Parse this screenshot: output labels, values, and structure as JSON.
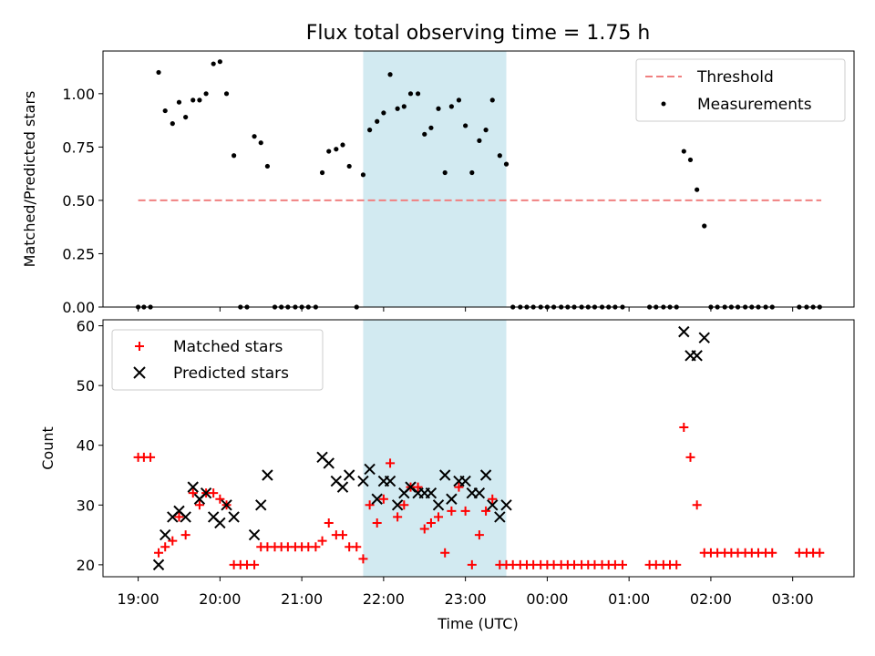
{
  "figure": {
    "title": "Flux total observing time = 1.75 h",
    "xlabel": "Time (UTC)",
    "top_ylabel": "Matched/Predicted stars",
    "bottom_ylabel": "Count"
  },
  "legends": {
    "threshold": "Threshold",
    "measurements": "Measurements",
    "matched": "Matched stars",
    "predicted": "Predicted stars"
  },
  "colors": {
    "threshold": "#f08080",
    "span": "#add8e6",
    "matched": "#ff0000",
    "predicted": "#000000",
    "measurements": "#000000"
  },
  "chart_data": [
    {
      "type": "scatter",
      "title": "Flux total observing time = 1.75 h",
      "xlabel": "",
      "ylabel": "Matched/Predicted stars",
      "xlim": [
        18.57,
        27.75
      ],
      "ylim": [
        0,
        1.2
      ],
      "x_ticks": [
        19,
        20,
        21,
        22,
        23,
        24,
        25,
        26,
        27
      ],
      "y_ticks": [
        0.0,
        0.25,
        0.5,
        0.75,
        1.0
      ],
      "y_tick_labels": [
        "0.00",
        "0.25",
        "0.50",
        "0.75",
        "1.00"
      ],
      "legend_position": "top-right",
      "shaded_span": [
        21.75,
        23.5
      ],
      "threshold": {
        "name": "Threshold",
        "y": 0.5,
        "x_range": [
          19.0,
          27.35
        ]
      },
      "series": [
        {
          "name": "Measurements",
          "points": [
            [
              19.0,
              0.0
            ],
            [
              19.07,
              0.0
            ],
            [
              19.15,
              0.0
            ],
            [
              19.25,
              1.1
            ],
            [
              19.33,
              0.92
            ],
            [
              19.42,
              0.86
            ],
            [
              19.5,
              0.96
            ],
            [
              19.58,
              0.89
            ],
            [
              19.67,
              0.97
            ],
            [
              19.75,
              0.97
            ],
            [
              19.83,
              1.0
            ],
            [
              19.92,
              1.14
            ],
            [
              20.0,
              1.15
            ],
            [
              20.08,
              1.0
            ],
            [
              20.17,
              0.71
            ],
            [
              20.25,
              0.0
            ],
            [
              20.33,
              0.0
            ],
            [
              20.42,
              0.8
            ],
            [
              20.5,
              0.77
            ],
            [
              20.58,
              0.66
            ],
            [
              20.67,
              0.0
            ],
            [
              20.75,
              0.0
            ],
            [
              20.83,
              0.0
            ],
            [
              20.92,
              0.0
            ],
            [
              21.0,
              0.0
            ],
            [
              21.08,
              0.0
            ],
            [
              21.17,
              0.0
            ],
            [
              21.25,
              0.63
            ],
            [
              21.33,
              0.73
            ],
            [
              21.42,
              0.74
            ],
            [
              21.5,
              0.76
            ],
            [
              21.58,
              0.66
            ],
            [
              21.67,
              0.0
            ],
            [
              21.75,
              0.62
            ],
            [
              21.83,
              0.83
            ],
            [
              21.92,
              0.87
            ],
            [
              22.0,
              0.91
            ],
            [
              22.08,
              1.09
            ],
            [
              22.17,
              0.93
            ],
            [
              22.25,
              0.94
            ],
            [
              22.33,
              1.0
            ],
            [
              22.42,
              1.0
            ],
            [
              22.5,
              0.81
            ],
            [
              22.58,
              0.84
            ],
            [
              22.67,
              0.93
            ],
            [
              22.75,
              0.63
            ],
            [
              22.83,
              0.94
            ],
            [
              22.92,
              0.97
            ],
            [
              23.0,
              0.85
            ],
            [
              23.08,
              0.63
            ],
            [
              23.17,
              0.78
            ],
            [
              23.25,
              0.83
            ],
            [
              23.33,
              0.97
            ],
            [
              23.42,
              0.71
            ],
            [
              23.5,
              0.67
            ],
            [
              23.58,
              0.0
            ],
            [
              23.67,
              0.0
            ],
            [
              23.75,
              0.0
            ],
            [
              23.83,
              0.0
            ],
            [
              23.92,
              0.0
            ],
            [
              24.0,
              0.0
            ],
            [
              24.08,
              0.0
            ],
            [
              24.17,
              0.0
            ],
            [
              24.25,
              0.0
            ],
            [
              24.33,
              0.0
            ],
            [
              24.42,
              0.0
            ],
            [
              24.5,
              0.0
            ],
            [
              24.58,
              0.0
            ],
            [
              24.67,
              0.0
            ],
            [
              24.75,
              0.0
            ],
            [
              24.83,
              0.0
            ],
            [
              24.92,
              0.0
            ],
            [
              25.25,
              0.0
            ],
            [
              25.33,
              0.0
            ],
            [
              25.42,
              0.0
            ],
            [
              25.5,
              0.0
            ],
            [
              25.58,
              0.0
            ],
            [
              25.67,
              0.73
            ],
            [
              25.75,
              0.69
            ],
            [
              25.83,
              0.55
            ],
            [
              25.92,
              0.38
            ],
            [
              26.0,
              0.0
            ],
            [
              26.08,
              0.0
            ],
            [
              26.17,
              0.0
            ],
            [
              26.25,
              0.0
            ],
            [
              26.33,
              0.0
            ],
            [
              26.42,
              0.0
            ],
            [
              26.5,
              0.0
            ],
            [
              26.58,
              0.0
            ],
            [
              26.67,
              0.0
            ],
            [
              26.75,
              0.0
            ],
            [
              27.08,
              0.0
            ],
            [
              27.17,
              0.0
            ],
            [
              27.25,
              0.0
            ],
            [
              27.33,
              0.0
            ]
          ]
        }
      ]
    },
    {
      "type": "scatter",
      "title": "",
      "xlabel": "Time (UTC)",
      "ylabel": "Count",
      "xlim": [
        18.57,
        27.75
      ],
      "ylim": [
        18,
        61
      ],
      "x_ticks": [
        19,
        20,
        21,
        22,
        23,
        24,
        25,
        26,
        27
      ],
      "x_tick_labels": [
        "19:00",
        "20:00",
        "21:00",
        "22:00",
        "23:00",
        "00:00",
        "01:00",
        "02:00",
        "03:00"
      ],
      "y_ticks": [
        20,
        30,
        40,
        50,
        60
      ],
      "y_tick_labels": [
        "20",
        "30",
        "40",
        "50",
        "60"
      ],
      "legend_position": "top-left",
      "shaded_span": [
        21.75,
        23.5
      ],
      "series": [
        {
          "name": "Matched stars",
          "marker": "plus",
          "points": [
            [
              19.0,
              38
            ],
            [
              19.07,
              38
            ],
            [
              19.15,
              38
            ],
            [
              19.25,
              22
            ],
            [
              19.33,
              23
            ],
            [
              19.42,
              24
            ],
            [
              19.5,
              28
            ],
            [
              19.58,
              25
            ],
            [
              19.67,
              32
            ],
            [
              19.75,
              30
            ],
            [
              19.83,
              32
            ],
            [
              19.92,
              32
            ],
            [
              20.0,
              31
            ],
            [
              20.08,
              30
            ],
            [
              20.17,
              20
            ],
            [
              20.25,
              20
            ],
            [
              20.33,
              20
            ],
            [
              20.42,
              20
            ],
            [
              20.5,
              23
            ],
            [
              20.58,
              23
            ],
            [
              20.67,
              23
            ],
            [
              20.75,
              23
            ],
            [
              20.83,
              23
            ],
            [
              20.92,
              23
            ],
            [
              21.0,
              23
            ],
            [
              21.08,
              23
            ],
            [
              21.17,
              23
            ],
            [
              21.25,
              24
            ],
            [
              21.33,
              27
            ],
            [
              21.42,
              25
            ],
            [
              21.5,
              25
            ],
            [
              21.58,
              23
            ],
            [
              21.67,
              23
            ],
            [
              21.75,
              21
            ],
            [
              21.83,
              30
            ],
            [
              21.92,
              27
            ],
            [
              22.0,
              31
            ],
            [
              22.08,
              37
            ],
            [
              22.17,
              28
            ],
            [
              22.25,
              30
            ],
            [
              22.33,
              33
            ],
            [
              22.42,
              33
            ],
            [
              22.5,
              26
            ],
            [
              22.58,
              27
            ],
            [
              22.67,
              28
            ],
            [
              22.75,
              22
            ],
            [
              22.83,
              29
            ],
            [
              22.92,
              33
            ],
            [
              23.0,
              29
            ],
            [
              23.08,
              20
            ],
            [
              23.17,
              25
            ],
            [
              23.25,
              29
            ],
            [
              23.33,
              31
            ],
            [
              23.42,
              20
            ],
            [
              23.5,
              20
            ],
            [
              23.58,
              20
            ],
            [
              23.67,
              20
            ],
            [
              23.75,
              20
            ],
            [
              23.83,
              20
            ],
            [
              23.92,
              20
            ],
            [
              24.0,
              20
            ],
            [
              24.08,
              20
            ],
            [
              24.17,
              20
            ],
            [
              24.25,
              20
            ],
            [
              24.33,
              20
            ],
            [
              24.42,
              20
            ],
            [
              24.5,
              20
            ],
            [
              24.58,
              20
            ],
            [
              24.67,
              20
            ],
            [
              24.75,
              20
            ],
            [
              24.83,
              20
            ],
            [
              24.92,
              20
            ],
            [
              25.25,
              20
            ],
            [
              25.33,
              20
            ],
            [
              25.42,
              20
            ],
            [
              25.5,
              20
            ],
            [
              25.58,
              20
            ],
            [
              25.67,
              43
            ],
            [
              25.75,
              38
            ],
            [
              25.83,
              30
            ],
            [
              25.92,
              22
            ],
            [
              26.0,
              22
            ],
            [
              26.08,
              22
            ],
            [
              26.17,
              22
            ],
            [
              26.25,
              22
            ],
            [
              26.33,
              22
            ],
            [
              26.42,
              22
            ],
            [
              26.5,
              22
            ],
            [
              26.58,
              22
            ],
            [
              26.67,
              22
            ],
            [
              26.75,
              22
            ],
            [
              27.08,
              22
            ],
            [
              27.17,
              22
            ],
            [
              27.25,
              22
            ],
            [
              27.33,
              22
            ]
          ]
        },
        {
          "name": "Predicted stars",
          "marker": "x",
          "points": [
            [
              19.25,
              20
            ],
            [
              19.33,
              25
            ],
            [
              19.42,
              28
            ],
            [
              19.5,
              29
            ],
            [
              19.58,
              28
            ],
            [
              19.67,
              33
            ],
            [
              19.75,
              31
            ],
            [
              19.83,
              32
            ],
            [
              19.92,
              28
            ],
            [
              20.0,
              27
            ],
            [
              20.08,
              30
            ],
            [
              20.17,
              28
            ],
            [
              20.42,
              25
            ],
            [
              20.5,
              30
            ],
            [
              20.58,
              35
            ],
            [
              21.25,
              38
            ],
            [
              21.33,
              37
            ],
            [
              21.42,
              34
            ],
            [
              21.5,
              33
            ],
            [
              21.58,
              35
            ],
            [
              21.75,
              34
            ],
            [
              21.83,
              36
            ],
            [
              21.92,
              31
            ],
            [
              22.0,
              34
            ],
            [
              22.08,
              34
            ],
            [
              22.17,
              30
            ],
            [
              22.25,
              32
            ],
            [
              22.33,
              33
            ],
            [
              22.42,
              32
            ],
            [
              22.5,
              32
            ],
            [
              22.58,
              32
            ],
            [
              22.67,
              30
            ],
            [
              22.75,
              35
            ],
            [
              22.83,
              31
            ],
            [
              22.92,
              34
            ],
            [
              23.0,
              34
            ],
            [
              23.08,
              32
            ],
            [
              23.17,
              32
            ],
            [
              23.25,
              35
            ],
            [
              23.33,
              30
            ],
            [
              23.42,
              28
            ],
            [
              23.5,
              30
            ],
            [
              25.67,
              59
            ],
            [
              25.75,
              55
            ],
            [
              25.83,
              55
            ],
            [
              25.92,
              58
            ]
          ]
        }
      ]
    }
  ]
}
